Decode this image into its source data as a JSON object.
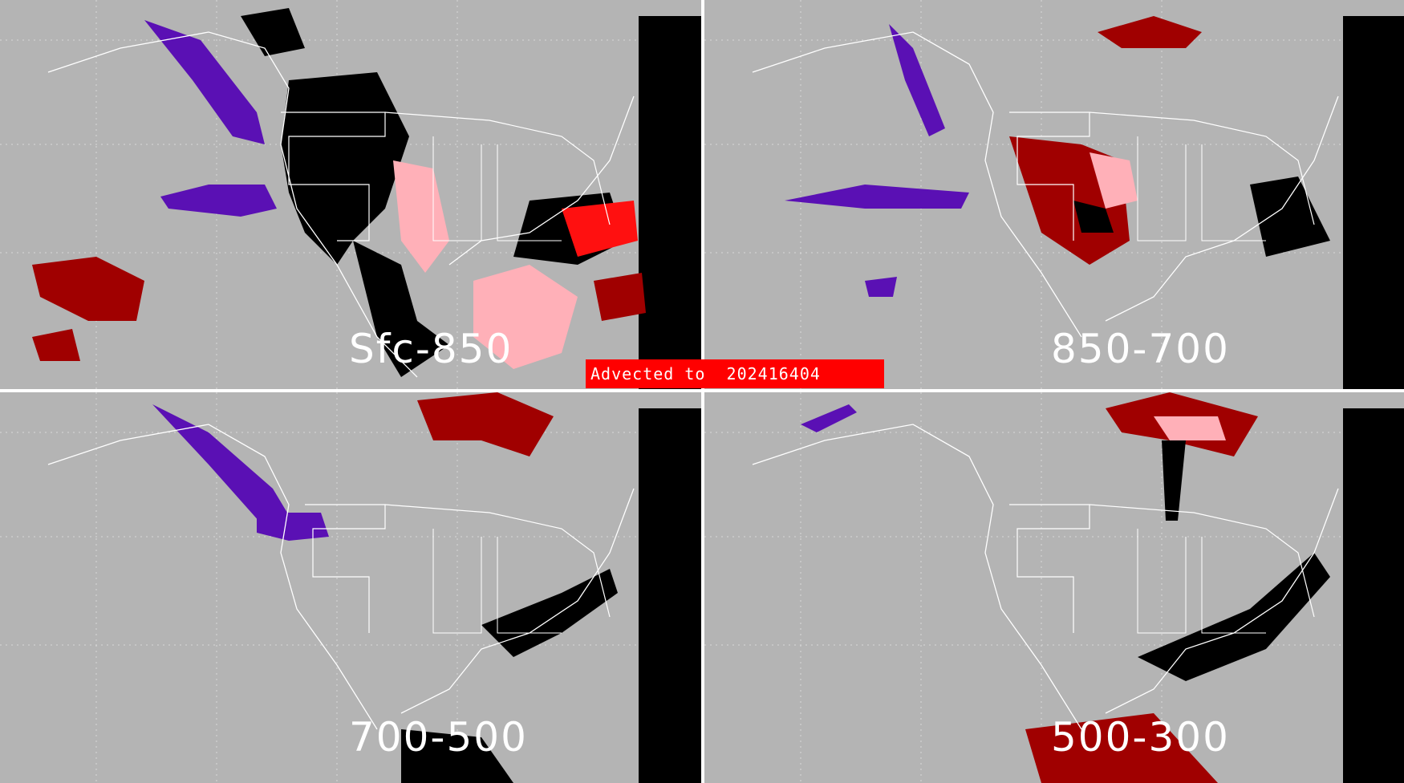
{
  "banner": {
    "prefix": "Advected to",
    "timestamp": "202416404"
  },
  "panels": [
    {
      "id": "tl",
      "label": "Sfc-850"
    },
    {
      "id": "tr",
      "label": "850-700"
    },
    {
      "id": "bl",
      "label": "700-500"
    },
    {
      "id": "br",
      "label": "500-300"
    }
  ],
  "colors": {
    "background": "#b4b4b4",
    "land_mask": "#000000",
    "outline": "#ffffff",
    "dark_red": "#a00000",
    "pink": "#ffb0b8",
    "bright_red": "#ff1010",
    "purple": "#5a10b4",
    "banner": "#ff0000"
  }
}
